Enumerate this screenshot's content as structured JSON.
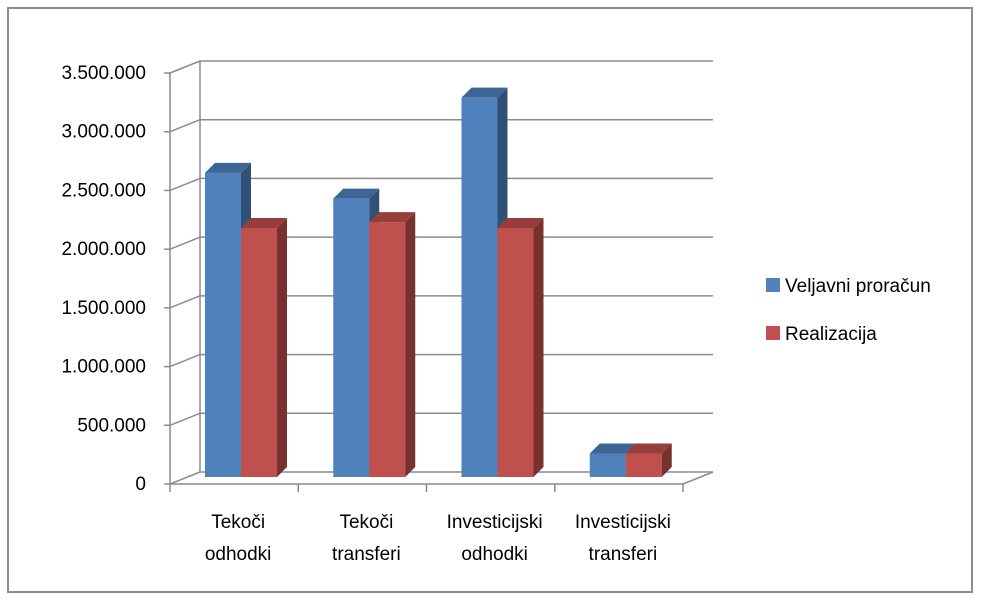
{
  "chart_data": {
    "type": "bar",
    "style": "3d-clustered-column",
    "categories": [
      [
        "Tekoči",
        "odhodki"
      ],
      [
        "Tekoči",
        "transferi"
      ],
      [
        "Investicijski",
        "odhodki"
      ],
      [
        "Investicijski",
        "transferi"
      ]
    ],
    "series": [
      {
        "name": "Veljavni proračun",
        "color": "#4f81bd",
        "values": [
          2650000,
          2430000,
          3290000,
          260000
        ]
      },
      {
        "name": "Realizacija",
        "color": "#c0504d",
        "values": [
          2180000,
          2230000,
          2180000,
          260000
        ]
      }
    ],
    "yticks": [
      "0",
      "500.000",
      "1.000.000",
      "1.500.000",
      "2.000.000",
      "2.500.000",
      "3.000.000",
      "3.500.000"
    ],
    "ylim": [
      0,
      3500000
    ],
    "grid": true,
    "legend_position": "right"
  }
}
